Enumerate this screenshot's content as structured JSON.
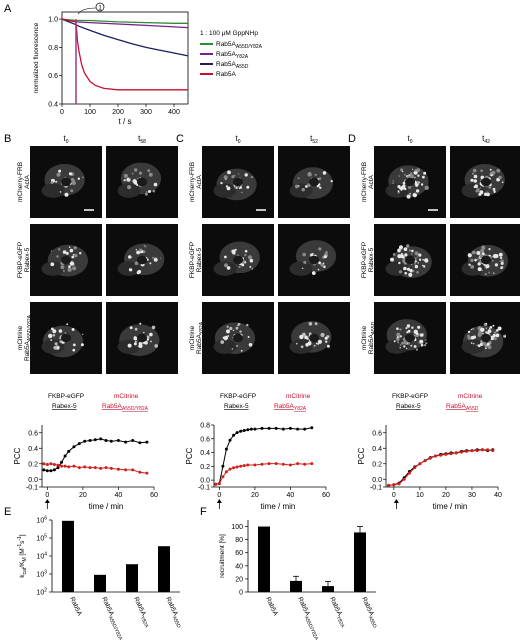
{
  "panels": {
    "A": {
      "letter": "A"
    },
    "B": {
      "letter": "B",
      "t_first": "t",
      "t_first_sub": "0",
      "t_second": "t",
      "t_second_sub": "58",
      "rows": [
        {
          "l1": "mCherry-FRB",
          "l2": "ActA"
        },
        {
          "l1": "FKBP-eGFP",
          "l2": "Rabex-5"
        },
        {
          "l1": "mCitrine",
          "l2": "Rab5A",
          "l2sub": "A55D/Y82A"
        }
      ]
    },
    "C": {
      "letter": "C",
      "t_first": "t",
      "t_first_sub": "0",
      "t_second": "t",
      "t_second_sub": "52",
      "rows": [
        {
          "l1": "mCherry-FRB",
          "l2": "ActA"
        },
        {
          "l1": "FKBP-eGFP",
          "l2": "Rabex-5"
        },
        {
          "l1": "mCitrine",
          "l2": "Rab5A",
          "l2sub": "Y82A"
        }
      ]
    },
    "D": {
      "letter": "D",
      "t_first": "t",
      "t_first_sub": "0",
      "t_second": "t",
      "t_second_sub": "42",
      "rows": [
        {
          "l1": "mCherry-FRB",
          "l2": "ActA"
        },
        {
          "l1": "FKBP-eGFP",
          "l2": "Rabex-5"
        },
        {
          "l1": "mCitrine",
          "l2": "Rab5A",
          "l2sub": "A55D"
        }
      ]
    },
    "E": {
      "letter": "E"
    },
    "F": {
      "letter": "F"
    }
  },
  "pcc_legends": {
    "B": {
      "black1": "FKBP-eGFP",
      "black2": "Rabex-5",
      "red1": "mCitrine",
      "red2": "Rab5A",
      "red2sub": "A55D/Y82A"
    },
    "C": {
      "black1": "FKBP-eGFP",
      "black2": "Rabex-5",
      "red1": "mCitrine",
      "red2": "Rab5A",
      "red2sub": "Y82A"
    },
    "D": {
      "black1": "FKBP-eGFP",
      "black2": "Rabex-5",
      "red1": "mCitrine",
      "red2": "Rab5A",
      "red2sub": "A55D"
    }
  },
  "chart_data": [
    {
      "type": "line",
      "panel": "A",
      "xlabel": "t / s",
      "ylabel": "normalized fluorescence",
      "xlim": [
        0,
        450
      ],
      "ylim": [
        0.4,
        1.05
      ],
      "xticks": [
        0,
        100,
        200,
        300,
        400
      ],
      "yticks": [
        0.4,
        0.6,
        0.8,
        1.0
      ],
      "xtick_labels": [
        "0",
        "100",
        "200",
        "300",
        "400"
      ],
      "ytick_labels": [
        "0.4",
        "0.6",
        "0.8",
        "1.0"
      ],
      "annotation": "1",
      "annotation_x": 50,
      "legend_title": "1 : 100 µM GppNHp",
      "legend_position": "right",
      "series": [
        {
          "name": "Rab5A",
          "sub": "A55D/Y82A",
          "color": "#2e8b2e",
          "x": [
            0,
            50,
            100,
            200,
            300,
            400,
            450
          ],
          "y": [
            1.0,
            0.99,
            0.99,
            0.98,
            0.975,
            0.97,
            0.97
          ]
        },
        {
          "name": "Rab5A",
          "sub": "Y82A",
          "color": "#7a1f8f",
          "x": [
            0,
            50,
            100,
            200,
            300,
            400,
            450
          ],
          "y": [
            1.0,
            0.98,
            0.975,
            0.965,
            0.955,
            0.945,
            0.94
          ]
        },
        {
          "name": "Rab5A",
          "sub": "A55D",
          "color": "#1a1f5c",
          "x": [
            0,
            50,
            60,
            100,
            150,
            200,
            250,
            300,
            350,
            400,
            450
          ],
          "y": [
            1.0,
            0.96,
            0.95,
            0.92,
            0.885,
            0.855,
            0.825,
            0.8,
            0.78,
            0.76,
            0.74
          ]
        },
        {
          "name": "Rab5A",
          "sub": "",
          "color": "#c8102e",
          "x": [
            0,
            50,
            55,
            60,
            70,
            80,
            100,
            120,
            150,
            200,
            250,
            300,
            400,
            450
          ],
          "y": [
            1.0,
            0.98,
            0.85,
            0.78,
            0.68,
            0.62,
            0.56,
            0.53,
            0.51,
            0.5,
            0.5,
            0.5,
            0.5,
            0.5
          ]
        }
      ]
    },
    {
      "type": "line",
      "panel": "B",
      "xlabel": "time / min",
      "ylabel": "PCC",
      "xlim": [
        -3,
        60
      ],
      "ylim": [
        -0.1,
        0.7
      ],
      "xticks": [
        0,
        20,
        40,
        60
      ],
      "yticks": [
        -0.1,
        0.0,
        0.2,
        0.4,
        0.6
      ],
      "xtick_labels": [
        "0",
        "20",
        "40",
        "60"
      ],
      "ytick_labels": [
        "-0.1",
        "0.0",
        "0.2",
        "0.4",
        "0.6"
      ],
      "arrow_x": 0,
      "series": [
        {
          "color": "#000000",
          "x": [
            -2,
            0,
            2,
            4,
            6,
            8,
            10,
            12,
            15,
            18,
            21,
            24,
            27,
            30,
            33,
            36,
            40,
            44,
            48,
            52,
            56
          ],
          "y": [
            0.12,
            0.11,
            0.11,
            0.12,
            0.15,
            0.22,
            0.3,
            0.36,
            0.42,
            0.46,
            0.49,
            0.5,
            0.51,
            0.52,
            0.5,
            0.49,
            0.5,
            0.48,
            0.5,
            0.47,
            0.48
          ]
        },
        {
          "color": "#d0201a",
          "x": [
            -2,
            0,
            2,
            4,
            6,
            8,
            10,
            12,
            15,
            18,
            21,
            24,
            27,
            30,
            33,
            36,
            40,
            44,
            48,
            52,
            56
          ],
          "y": [
            0.2,
            0.19,
            0.2,
            0.19,
            0.18,
            0.17,
            0.17,
            0.16,
            0.17,
            0.15,
            0.16,
            0.15,
            0.15,
            0.14,
            0.15,
            0.14,
            0.13,
            0.12,
            0.12,
            0.09,
            0.08
          ]
        }
      ]
    },
    {
      "type": "line",
      "panel": "C",
      "xlabel": "time / min",
      "ylabel": "PCC",
      "xlim": [
        -3,
        60
      ],
      "ylim": [
        -0.1,
        0.8
      ],
      "xticks": [
        0,
        20,
        40,
        60
      ],
      "yticks": [
        -0.1,
        0.0,
        0.2,
        0.4,
        0.6,
        0.8
      ],
      "xtick_labels": [
        "0",
        "20",
        "40",
        "60"
      ],
      "ytick_labels": [
        "-0.1",
        "0.0",
        "0.2",
        "0.4",
        "0.6",
        "0.8"
      ],
      "arrow_x": 0,
      "series": [
        {
          "color": "#000000",
          "x": [
            -2,
            0,
            2,
            4,
            6,
            8,
            10,
            12,
            14,
            16,
            18,
            20,
            24,
            28,
            32,
            36,
            40,
            44,
            48,
            52
          ],
          "y": [
            -0.06,
            -0.05,
            0.2,
            0.45,
            0.58,
            0.65,
            0.69,
            0.71,
            0.72,
            0.73,
            0.74,
            0.74,
            0.75,
            0.75,
            0.75,
            0.74,
            0.75,
            0.74,
            0.74,
            0.76
          ]
        },
        {
          "color": "#d0201a",
          "x": [
            -2,
            0,
            2,
            4,
            6,
            8,
            10,
            12,
            14,
            16,
            20,
            24,
            28,
            32,
            36,
            40,
            44,
            48,
            52
          ],
          "y": [
            -0.06,
            -0.05,
            0.05,
            0.12,
            0.16,
            0.18,
            0.19,
            0.2,
            0.21,
            0.22,
            0.22,
            0.23,
            0.24,
            0.24,
            0.23,
            0.22,
            0.24,
            0.23,
            0.24
          ]
        }
      ]
    },
    {
      "type": "line",
      "panel": "D",
      "xlabel": "time / min",
      "ylabel": "PCC",
      "xlim": [
        -3,
        40
      ],
      "ylim": [
        -0.1,
        0.7
      ],
      "xticks": [
        0,
        10,
        20,
        30,
        40
      ],
      "yticks": [
        -0.1,
        0.0,
        0.2,
        0.4,
        0.6
      ],
      "xtick_labels": [
        "0",
        "10",
        "20",
        "30",
        "40"
      ],
      "ytick_labels": [
        "-0.1",
        "0.0",
        "0.2",
        "0.4",
        "0.6"
      ],
      "arrow_x": 1,
      "series": [
        {
          "color": "#000000",
          "x": [
            -2,
            0,
            2,
            4,
            6,
            8,
            10,
            12,
            14,
            16,
            18,
            20,
            22,
            24,
            26,
            28,
            30,
            32,
            34,
            36,
            38
          ],
          "y": [
            -0.08,
            -0.07,
            -0.05,
            0.02,
            0.1,
            0.16,
            0.2,
            0.24,
            0.28,
            0.3,
            0.32,
            0.33,
            0.34,
            0.34,
            0.36,
            0.37,
            0.37,
            0.38,
            0.38,
            0.37,
            0.38
          ]
        },
        {
          "color": "#d0201a",
          "x": [
            -2,
            0,
            2,
            4,
            6,
            8,
            10,
            12,
            14,
            16,
            18,
            20,
            22,
            24,
            26,
            28,
            30,
            32,
            34,
            36,
            38
          ],
          "y": [
            -0.08,
            -0.07,
            -0.06,
            0.0,
            0.08,
            0.15,
            0.2,
            0.24,
            0.27,
            0.3,
            0.31,
            0.32,
            0.33,
            0.34,
            0.35,
            0.36,
            0.37,
            0.37,
            0.38,
            0.38,
            0.37
          ]
        }
      ]
    },
    {
      "type": "bar",
      "panel": "E",
      "log_scale": true,
      "ylabel": "k",
      "ylabel_sub": "cat",
      "ylabel_mid": "/K",
      "ylabel_sub2": "M",
      "ylabel_unit": " [M",
      "ylabel_sup": "-1",
      "ylabel_unit2": "s",
      "ylabel_sup2": "-1",
      "ylabel_end": "]",
      "ylim": [
        100,
        1000000
      ],
      "yticks": [
        100,
        1000,
        10000,
        100000,
        1000000
      ],
      "ytick_base": "10",
      "ytick_exps": [
        "2",
        "3",
        "4",
        "5",
        "6"
      ],
      "categories": [
        {
          "name": "Rab5A",
          "sub": ""
        },
        {
          "name": "Rab5A",
          "sub": "A55D/Y82A"
        },
        {
          "name": "Rab5A",
          "sub": "Y82A"
        },
        {
          "name": "Rab5A",
          "sub": "A55D"
        }
      ],
      "values": [
        900000,
        900,
        3500,
        35000
      ]
    },
    {
      "type": "bar",
      "panel": "F",
      "ylabel": "recruitment [%]",
      "ylim": [
        0,
        110
      ],
      "yticks": [
        0,
        20,
        40,
        60,
        80,
        100
      ],
      "ytick_labels": [
        "0",
        "20",
        "40",
        "60",
        "80",
        "100"
      ],
      "categories": [
        {
          "name": "Rab5A",
          "sub": ""
        },
        {
          "name": "Rab5A",
          "sub": "A55D/Y82A"
        },
        {
          "name": "Rab5A",
          "sub": "Y82A"
        },
        {
          "name": "Rab5A",
          "sub": "A55D"
        }
      ],
      "values": [
        100,
        17,
        9,
        91
      ],
      "errors": [
        0,
        7,
        7,
        9
      ]
    }
  ]
}
